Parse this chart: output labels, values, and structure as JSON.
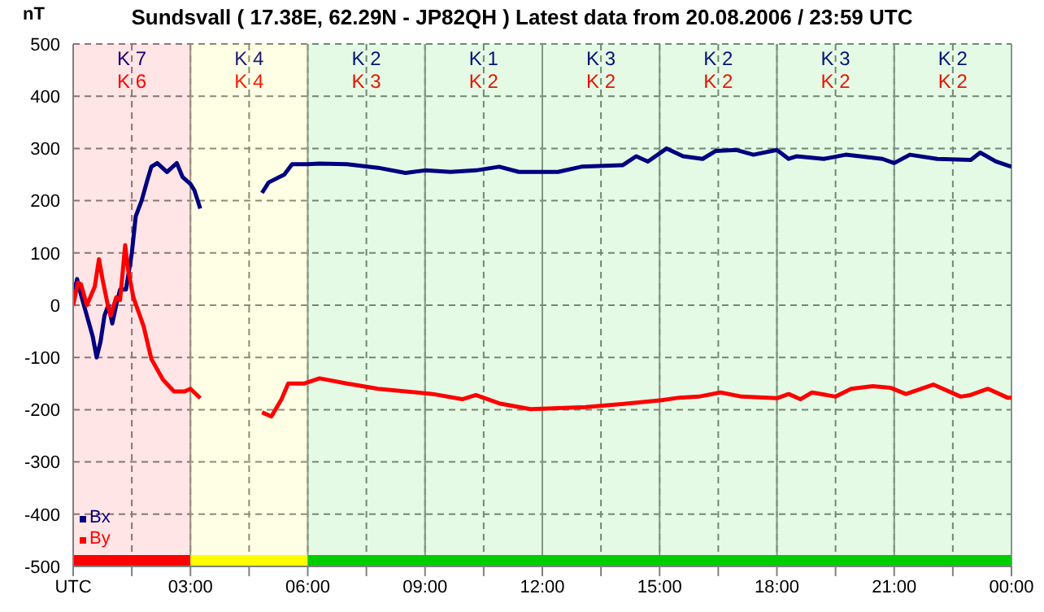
{
  "chart_data": {
    "type": "line",
    "title": "Sundsvall ( 17.38E, 62.29N - JP82QH ) Latest data from 20.08.2006 / 23:59 UTC",
    "ylabel": "nT",
    "xlim": [
      0,
      24
    ],
    "xticks": [
      {
        "value": 0,
        "label": "UTC"
      },
      {
        "value": 1.5,
        "label": null
      },
      {
        "value": 3,
        "label": "03:00"
      },
      {
        "value": 4.5,
        "label": null
      },
      {
        "value": 6,
        "label": "06:00"
      },
      {
        "value": 7.5,
        "label": null
      },
      {
        "value": 9,
        "label": "09:00"
      },
      {
        "value": 10.5,
        "label": null
      },
      {
        "value": 12,
        "label": "12:00"
      },
      {
        "value": 13.5,
        "label": null
      },
      {
        "value": 15,
        "label": "15:00"
      },
      {
        "value": 16.5,
        "label": null
      },
      {
        "value": 18,
        "label": "18:00"
      },
      {
        "value": 19.5,
        "label": null
      },
      {
        "value": 21,
        "label": "21:00"
      },
      {
        "value": 22.5,
        "label": null
      },
      {
        "value": 24,
        "label": "00:00"
      }
    ],
    "ylim": [
      -500,
      500
    ],
    "yticks": [
      -500,
      -400,
      -300,
      -200,
      -100,
      0,
      100,
      200,
      300,
      400,
      500
    ],
    "grid": true,
    "legend": "bottom left",
    "marker": "none",
    "line_style": "solid",
    "series": [
      {
        "name": "Bx",
        "color": "#000080",
        "x": [
          0,
          0.1,
          0.2,
          0.35,
          0.5,
          0.6,
          0.7,
          0.8,
          0.9,
          1.0,
          1.1,
          1.2,
          1.35,
          1.5,
          1.6,
          1.75,
          1.9,
          2.0,
          2.15,
          2.4,
          2.65,
          2.8,
          3.0,
          3.1,
          3.25,
          4.0,
          4.83,
          5.0,
          5.4,
          5.6,
          6.0,
          6.3,
          7.0,
          7.8,
          8.5,
          9.0,
          9.65,
          10.3,
          10.9,
          11.4,
          12.4,
          13.0,
          14.06,
          14.4,
          14.7,
          15.18,
          15.6,
          16.1,
          16.43,
          16.97,
          17.4,
          18.0,
          18.3,
          18.5,
          19.2,
          19.76,
          20.7,
          21.0,
          21.4,
          22.1,
          22.96,
          23.2,
          23.6,
          24.0
        ],
        "values": [
          15,
          50,
          20,
          -20,
          -60,
          -100,
          -70,
          -20,
          0,
          -35,
          0,
          30,
          30,
          100,
          170,
          200,
          240,
          265,
          272,
          255,
          272,
          245,
          232,
          220,
          185,
          null,
          215,
          235,
          250,
          270,
          270,
          271,
          270,
          263,
          253,
          258,
          255,
          258,
          265,
          255,
          255,
          265,
          268,
          285,
          275,
          300,
          285,
          280,
          295,
          297,
          288,
          297,
          280,
          285,
          280,
          288,
          280,
          272,
          288,
          280,
          278,
          292,
          275,
          265
        ]
      },
      {
        "name": "By",
        "color": "#ff0000",
        "x": [
          0,
          0.12,
          0.2,
          0.35,
          0.55,
          0.66,
          0.75,
          0.9,
          0.96,
          1.1,
          1.2,
          1.33,
          1.4,
          1.54,
          1.8,
          2.0,
          2.3,
          2.58,
          2.85,
          3.0,
          3.25,
          4.0,
          4.83,
          5.07,
          5.33,
          5.5,
          5.9,
          6.3,
          7.0,
          7.8,
          9.2,
          9.95,
          10.3,
          10.9,
          11.7,
          13.1,
          13.9,
          15.05,
          15.5,
          16.0,
          16.56,
          17.1,
          18.0,
          18.3,
          18.6,
          18.9,
          19.5,
          19.9,
          20.45,
          20.9,
          21.3,
          22.0,
          22.7,
          22.95,
          23.4,
          23.9,
          24.0
        ],
        "values": [
          0,
          43,
          40,
          0,
          35,
          88,
          50,
          -5,
          -20,
          15,
          10,
          115,
          70,
          15,
          -40,
          -103,
          -143,
          -165,
          -165,
          -160,
          -178,
          null,
          -205,
          -213,
          -180,
          -150,
          -150,
          -140,
          -150,
          -160,
          -170,
          -180,
          -172,
          -188,
          -199,
          -195,
          -190,
          -182,
          -177,
          -175,
          -167,
          -175,
          -178,
          -170,
          -180,
          -167,
          -175,
          -160,
          -155,
          -158,
          -170,
          -152,
          -175,
          -172,
          -160,
          -177,
          -177
        ]
      }
    ],
    "annotations": [
      "K 7",
      "K 6",
      "K 4",
      "K 4",
      "K 2",
      "K 3",
      "K 1",
      "K 2",
      "K 3",
      "K 2",
      "K 2",
      "K 2",
      "K 3",
      "K 2",
      "K 2",
      "K 2"
    ],
    "bands": [
      {
        "axis": "x",
        "from": 0,
        "to": 3,
        "color": "#ff0000"
      },
      {
        "axis": "x",
        "from": 3,
        "to": 6,
        "color": "#ffff00"
      },
      {
        "axis": "x",
        "from": 6,
        "to": 24,
        "color": "#00cc00"
      }
    ]
  }
}
